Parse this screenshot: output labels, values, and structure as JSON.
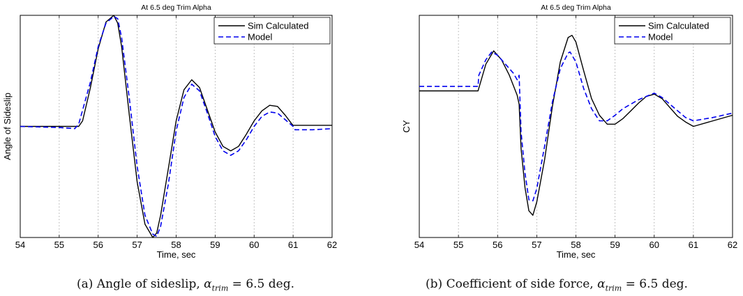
{
  "chart_data": [
    {
      "type": "line",
      "title": "At 6.5 deg Trim Alpha",
      "xlabel": "Time, sec",
      "ylabel": "Angle of Sideslip",
      "xlim": [
        54,
        62
      ],
      "ylim": [
        -1.0,
        1.0
      ],
      "xticks": [
        "54",
        "55",
        "56",
        "57",
        "58",
        "59",
        "60",
        "61",
        "62"
      ],
      "grid": "vertical dotted",
      "legend_position": "top-right",
      "series": [
        {
          "name": "Sim Calculated",
          "color": "#000000",
          "style": "solid",
          "x": [
            54,
            55,
            55.5,
            55.6,
            55.8,
            56.0,
            56.2,
            56.4,
            56.5,
            56.6,
            56.8,
            57.0,
            57.2,
            57.4,
            57.5,
            57.6,
            57.8,
            58.0,
            58.2,
            58.4,
            58.6,
            58.8,
            59.0,
            59.2,
            59.4,
            59.6,
            59.8,
            60.0,
            60.2,
            60.4,
            60.6,
            60.8,
            60.95,
            61.0,
            61.5,
            62.0
          ],
          "y": [
            0.0,
            0.0,
            0.0,
            0.05,
            0.35,
            0.7,
            0.94,
            1.0,
            0.93,
            0.72,
            0.1,
            -0.5,
            -0.88,
            -1.0,
            -0.96,
            -0.8,
            -0.38,
            0.05,
            0.33,
            0.42,
            0.35,
            0.15,
            -0.05,
            -0.18,
            -0.22,
            -0.18,
            -0.07,
            0.05,
            0.14,
            0.19,
            0.18,
            0.1,
            0.03,
            0.01,
            0.01,
            0.01
          ]
        },
        {
          "name": "Model",
          "color": "#0000ee",
          "style": "dashed",
          "x": [
            54,
            55,
            55.4,
            55.5,
            55.8,
            56.0,
            56.2,
            56.4,
            56.5,
            56.6,
            56.8,
            57.0,
            57.2,
            57.4,
            57.5,
            57.6,
            57.8,
            58.0,
            58.2,
            58.4,
            58.6,
            58.8,
            59.0,
            59.2,
            59.4,
            59.6,
            59.8,
            60.0,
            60.2,
            60.4,
            60.6,
            60.8,
            61.0,
            61.05,
            61.5,
            62.0
          ],
          "y": [
            0.0,
            -0.01,
            -0.02,
            0.02,
            0.4,
            0.72,
            0.93,
            0.99,
            0.97,
            0.8,
            0.25,
            -0.36,
            -0.8,
            -0.97,
            -0.99,
            -0.9,
            -0.52,
            -0.04,
            0.26,
            0.38,
            0.32,
            0.12,
            -0.09,
            -0.22,
            -0.26,
            -0.22,
            -0.12,
            0.0,
            0.09,
            0.13,
            0.12,
            0.06,
            0.0,
            -0.03,
            -0.03,
            -0.02
          ]
        }
      ]
    },
    {
      "type": "line",
      "title": "At 6.5 deg Trim Alpha",
      "xlabel": "Time, sec",
      "ylabel": "CY",
      "xlim": [
        54,
        62
      ],
      "ylim": [
        -1.0,
        1.0
      ],
      "xticks": [
        "54",
        "55",
        "56",
        "57",
        "58",
        "59",
        "60",
        "61",
        "62"
      ],
      "grid": "vertical dotted",
      "legend_position": "top-right",
      "series": [
        {
          "name": "Sim Calculated",
          "color": "#000000",
          "style": "solid",
          "x": [
            54,
            55.5,
            55.55,
            55.7,
            55.9,
            56.1,
            56.3,
            56.5,
            56.55,
            56.6,
            56.7,
            56.8,
            56.9,
            57.0,
            57.2,
            57.4,
            57.6,
            57.8,
            57.9,
            58.0,
            58.2,
            58.4,
            58.6,
            58.8,
            59.0,
            59.2,
            59.4,
            59.6,
            59.8,
            60.0,
            60.2,
            60.4,
            60.6,
            60.8,
            61.0,
            61.5,
            62.0
          ],
          "y": [
            0.32,
            0.32,
            0.38,
            0.56,
            0.68,
            0.6,
            0.46,
            0.28,
            0.2,
            -0.2,
            -0.55,
            -0.76,
            -0.8,
            -0.68,
            -0.3,
            0.18,
            0.58,
            0.8,
            0.82,
            0.76,
            0.5,
            0.25,
            0.1,
            0.02,
            0.02,
            0.07,
            0.14,
            0.21,
            0.27,
            0.29,
            0.25,
            0.17,
            0.09,
            0.04,
            0.0,
            0.05,
            0.1
          ]
        },
        {
          "name": "Model",
          "color": "#0000ee",
          "style": "dashed",
          "x": [
            54,
            55.5,
            55.52,
            55.7,
            55.85,
            56.0,
            56.2,
            56.4,
            56.5,
            56.55,
            56.6,
            56.7,
            56.8,
            56.9,
            57.0,
            57.2,
            57.4,
            57.6,
            57.8,
            57.85,
            58.0,
            58.2,
            58.4,
            58.6,
            58.8,
            59.0,
            59.2,
            59.4,
            59.6,
            59.8,
            60.0,
            60.2,
            60.4,
            60.6,
            60.8,
            61.0,
            61.5,
            62.0
          ],
          "y": [
            0.36,
            0.36,
            0.46,
            0.6,
            0.67,
            0.64,
            0.56,
            0.48,
            0.42,
            0.46,
            -0.05,
            -0.42,
            -0.66,
            -0.67,
            -0.56,
            -0.18,
            0.22,
            0.52,
            0.66,
            0.67,
            0.58,
            0.34,
            0.16,
            0.05,
            0.05,
            0.1,
            0.16,
            0.2,
            0.24,
            0.27,
            0.3,
            0.26,
            0.2,
            0.14,
            0.08,
            0.05,
            0.08,
            0.12
          ]
        }
      ]
    }
  ],
  "captions": [
    {
      "prefix": "(a) Angle of sideslip, ",
      "var": "α",
      "sub": "trim",
      "suffix": " = 6.5 deg."
    },
    {
      "prefix": "(b) Coefficient of side force, ",
      "var": "α",
      "sub": "trim",
      "suffix": " = 6.5 deg."
    }
  ]
}
